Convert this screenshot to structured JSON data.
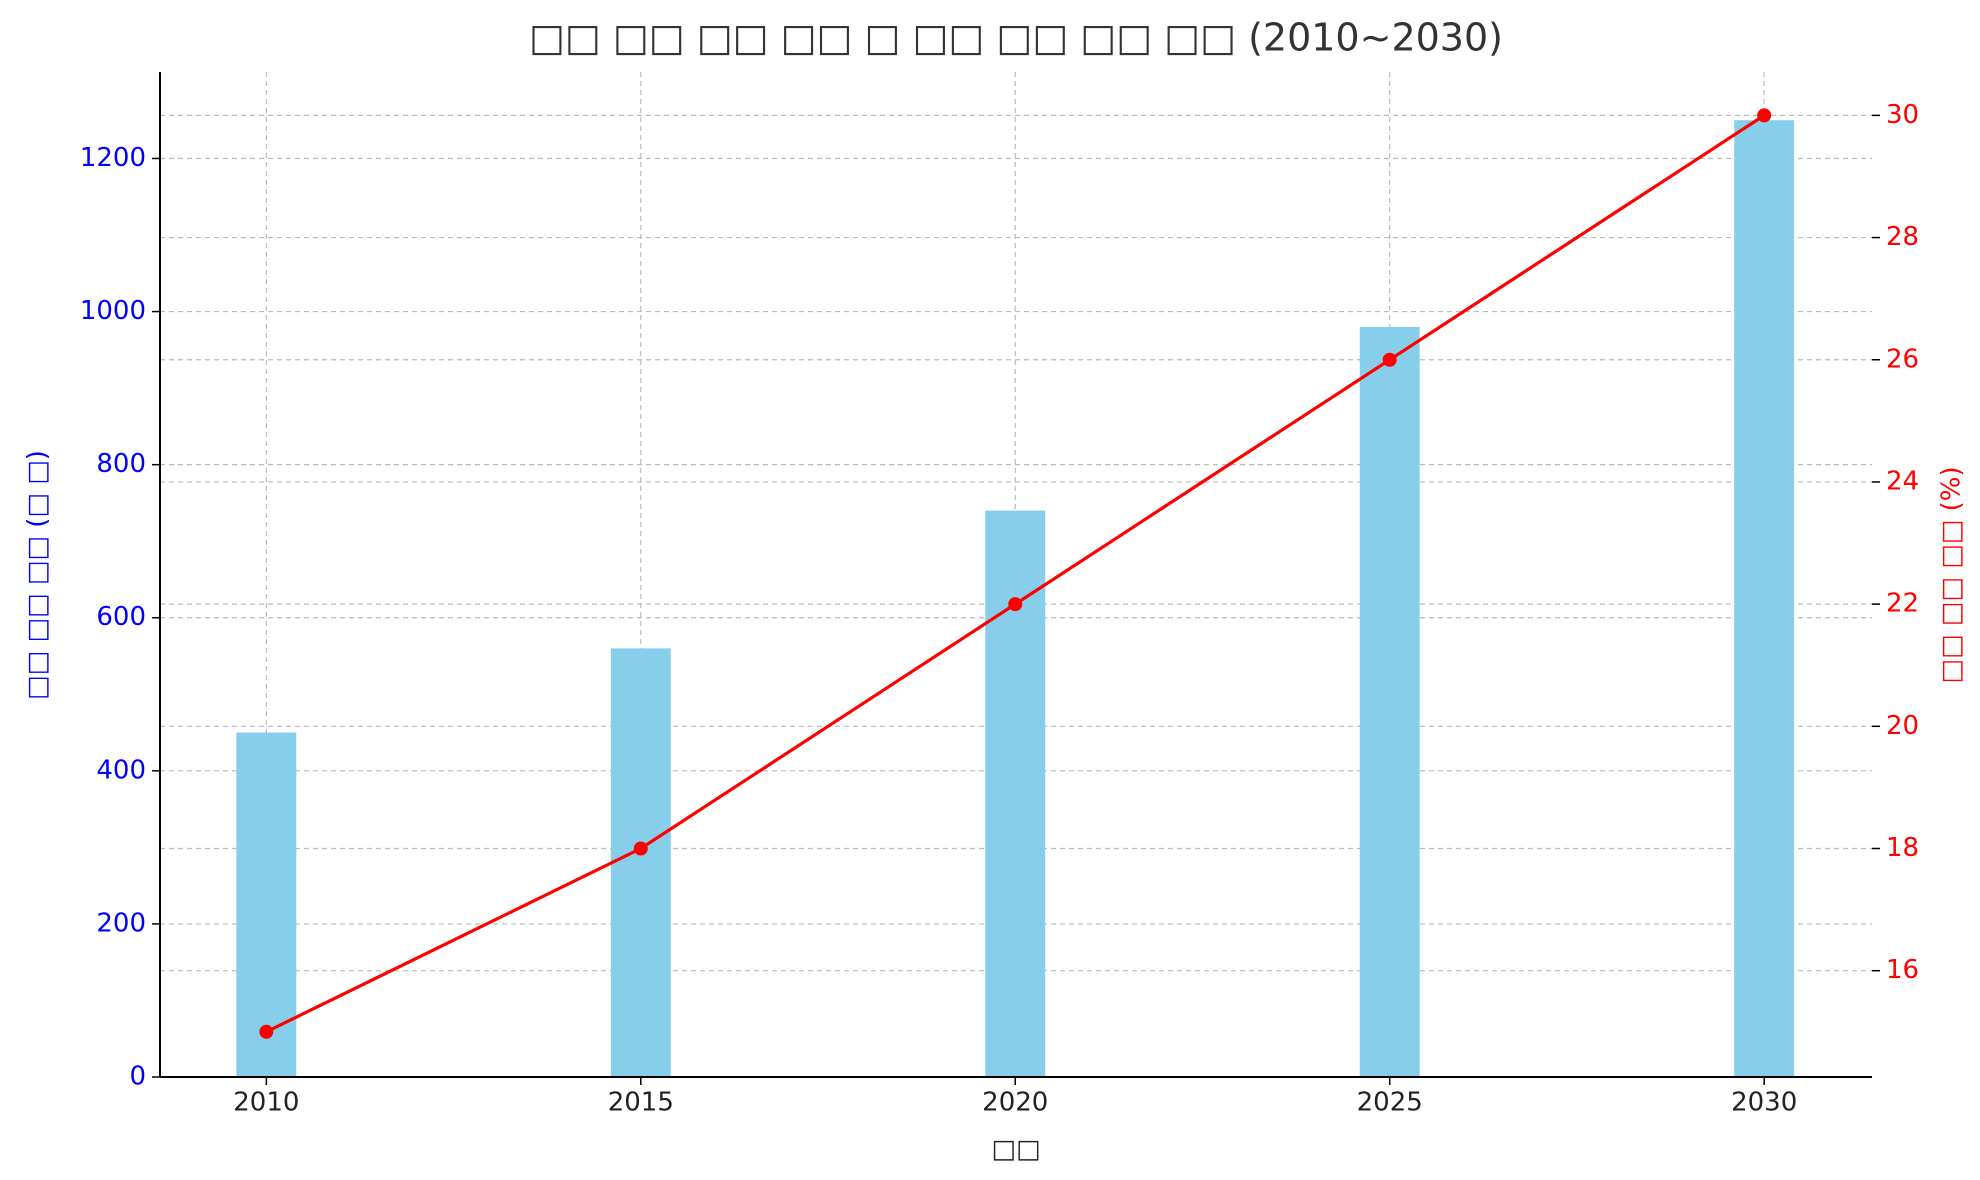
{
  "chart_data": {
    "type": "bar",
    "title": "□□ □□ □□ □□ □ □□ □□ □□ □□ (2010~2030)",
    "x_label": "□□",
    "y_label": "□□ □□ □□ (□ □)",
    "y2_label": "□□ □□ □□ (%)",
    "x": [
      2010,
      2015,
      2020,
      2025,
      2030
    ],
    "xlim": [
      2008.58,
      2031.44
    ],
    "xticks": [
      2010,
      2015,
      2020,
      2025,
      2030
    ],
    "ylim": [
      0,
      1313
    ],
    "yticks": [
      0,
      200,
      400,
      600,
      800,
      1000,
      1200
    ],
    "y2lim": [
      14.26,
      30.71
    ],
    "y2ticks": [
      16,
      18,
      20,
      22,
      24,
      26,
      28,
      30
    ],
    "y_color": "blue",
    "y2_color": "red",
    "grid": true,
    "series": [
      {
        "type": "bar",
        "color": "#87ceeb",
        "values": [
          450,
          560,
          740,
          980,
          1250
        ]
      },
      {
        "type": "line",
        "color": "red",
        "axis": "y2",
        "values": [
          15,
          18,
          22,
          26,
          30
        ]
      }
    ]
  }
}
